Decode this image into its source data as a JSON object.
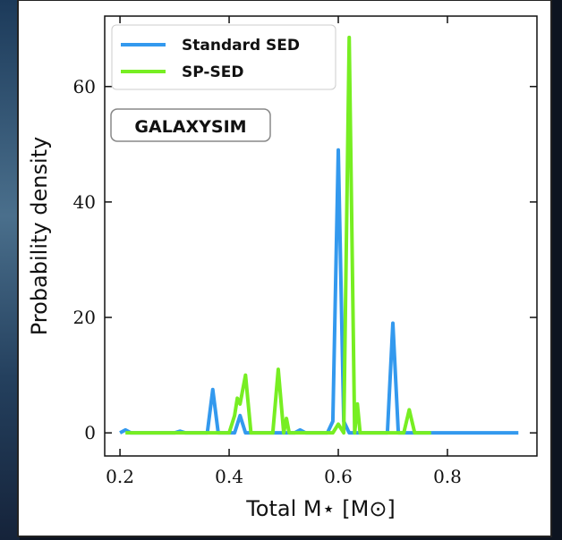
{
  "chart_data": {
    "type": "line",
    "xlabel": "Total M⋆ [M⊙]",
    "ylabel": "Probability density",
    "annotation": "GALAXYSIM",
    "xlim": [
      0.172,
      0.964
    ],
    "ylim": [
      -4,
      72.2
    ],
    "xticks": [
      0.2,
      0.4,
      0.6,
      0.8
    ],
    "yticks": [
      0,
      20,
      40,
      60
    ],
    "legend": "upper left",
    "series": [
      {
        "name": "Standard SED",
        "color": "#3399ee",
        "x": [
          0.2,
          0.21,
          0.22,
          0.3,
          0.31,
          0.32,
          0.36,
          0.37,
          0.38,
          0.41,
          0.42,
          0.43,
          0.52,
          0.53,
          0.54,
          0.58,
          0.59,
          0.6,
          0.61,
          0.62,
          0.69,
          0.7,
          0.71,
          0.93
        ],
        "values": [
          0,
          0.5,
          0,
          0,
          0.3,
          0,
          0,
          7.5,
          0,
          0,
          3,
          0,
          0,
          0.5,
          0,
          0,
          2,
          49,
          2,
          0,
          0,
          19,
          0,
          0
        ]
      },
      {
        "name": "SP-SED",
        "color": "#77ee22",
        "x": [
          0.21,
          0.4,
          0.41,
          0.415,
          0.42,
          0.43,
          0.44,
          0.48,
          0.49,
          0.5,
          0.505,
          0.51,
          0.59,
          0.6,
          0.61,
          0.62,
          0.63,
          0.635,
          0.64,
          0.72,
          0.73,
          0.74,
          0.77
        ],
        "values": [
          0,
          0,
          3,
          6,
          5,
          10,
          0,
          0,
          11,
          0,
          2.5,
          0,
          0,
          1.5,
          0,
          68.5,
          0,
          5,
          0,
          0,
          4,
          0,
          0
        ]
      }
    ]
  }
}
